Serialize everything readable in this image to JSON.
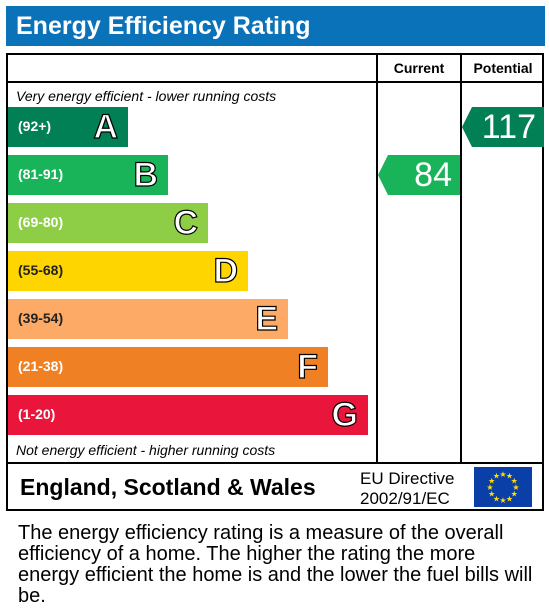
{
  "header": {
    "title": "Energy Efficiency Rating"
  },
  "columns": {
    "current": "Current",
    "potential": "Potential"
  },
  "notes": {
    "top": "Very energy efficient - lower running costs",
    "bottom": "Not energy efficient - higher running costs"
  },
  "chart_data": {
    "type": "bar",
    "title": "Energy Efficiency Rating",
    "categories": [
      "A",
      "B",
      "C",
      "D",
      "E",
      "F",
      "G"
    ],
    "bands": [
      {
        "letter": "A",
        "range": "(92+)",
        "color": "#008054"
      },
      {
        "letter": "B",
        "range": "(81-91)",
        "color": "#19b459"
      },
      {
        "letter": "C",
        "range": "(69-80)",
        "color": "#8dce46"
      },
      {
        "letter": "D",
        "range": "(55-68)",
        "color": "#ffd500"
      },
      {
        "letter": "E",
        "range": "(39-54)",
        "color": "#fcaa65"
      },
      {
        "letter": "F",
        "range": "(21-38)",
        "color": "#ef8023"
      },
      {
        "letter": "G",
        "range": "(1-20)",
        "color": "#e9153b"
      }
    ],
    "current": {
      "value": "84",
      "band": "B",
      "color": "#19b459"
    },
    "potential": {
      "value": "117",
      "band": "A",
      "color": "#008054"
    }
  },
  "footer_box": {
    "region": "England, Scotland & Wales",
    "directive_line1": "EU Directive",
    "directive_line2": "2002/91/EC",
    "flag_icon": "eu-flag-icon"
  },
  "description": "The energy efficiency rating is a measure of the overall efficiency of a home. The higher the rating the more energy efficient the home is and the lower the fuel bills will be."
}
